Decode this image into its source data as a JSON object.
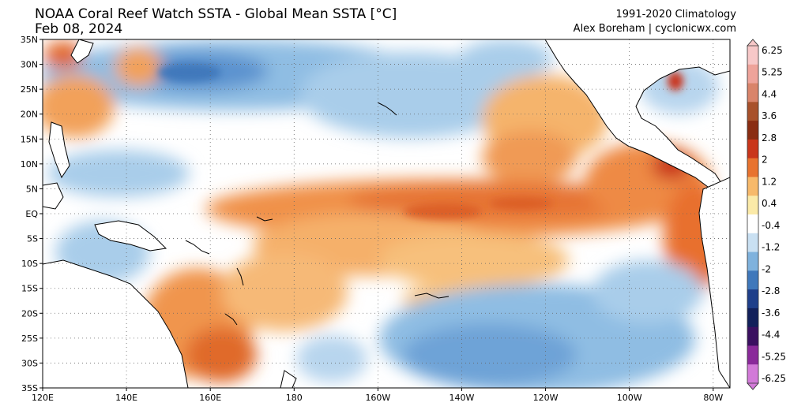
{
  "header": {
    "title": "NOAA Coral Reef Watch SSTA - Global Mean SSTA [°C]",
    "date": "Feb 08, 2024",
    "climatology": "1991-2020 Climatology",
    "credit": "Alex Boreham | cyclonicwx.com"
  },
  "chart_data": {
    "type": "heatmap",
    "title": "NOAA Coral Reef Watch SSTA - Global Mean SSTA [°C]",
    "subtitle": "Feb 08, 2024",
    "units": "°C",
    "x_axis": {
      "range": [
        120,
        284
      ],
      "ticks": [
        120,
        140,
        160,
        180,
        200,
        220,
        240,
        260,
        280
      ],
      "tick_labels": [
        "120E",
        "140E",
        "160E",
        "180",
        "160W",
        "140W",
        "120W",
        "100W",
        "80W"
      ]
    },
    "y_axis": {
      "range": [
        -35,
        35
      ],
      "ticks": [
        35,
        30,
        25,
        20,
        15,
        10,
        5,
        0,
        -5,
        -10,
        -15,
        -20,
        -25,
        -30,
        -35
      ],
      "tick_labels": [
        "35N",
        "30N",
        "25N",
        "20N",
        "15N",
        "10N",
        "5N",
        "EQ",
        "5S",
        "10S",
        "15S",
        "20S",
        "25S",
        "30S",
        "35S"
      ]
    },
    "grid": true,
    "colorbar": {
      "levels": [
        6.25,
        5.25,
        4.4,
        3.6,
        2.8,
        2,
        1.2,
        0.4,
        -0.4,
        -1.2,
        -2,
        -2.8,
        -3.6,
        -4.4,
        -5.25,
        -6.25
      ],
      "labels": [
        "6.25",
        "5.25",
        "4.4",
        "3.6",
        "2.8",
        "2",
        "1.2",
        "0.4",
        "-0.4",
        "-1.2",
        "-2",
        "-2.8",
        "-3.6",
        "-4.4",
        "-5.25",
        "-6.25"
      ],
      "colors": [
        "#f7c8c8",
        "#eea39a",
        "#d9846a",
        "#a8512b",
        "#8a2d12",
        "#c9361b",
        "#e8732f",
        "#f7b96a",
        "#fbeaa8",
        "#ffffff",
        "#c9e0f2",
        "#7fb2dd",
        "#3f78bb",
        "#1f3f8a",
        "#12205a",
        "#3a1060",
        "#8a2a9a",
        "#d27ad8"
      ]
    },
    "features": [
      {
        "region": "equatorial central/eastern Pacific",
        "anomaly": "warm",
        "lon": [
          180,
          280
        ],
        "lat": [
          -8,
          8
        ]
      },
      {
        "region": "subtropical South Pacific",
        "anomaly": "cool",
        "lon": [
          200,
          280
        ],
        "lat": [
          -35,
          -15
        ]
      },
      {
        "region": "subtropical North Pacific",
        "anomaly": "cool",
        "lon": [
          130,
          230
        ],
        "lat": [
          15,
          35
        ]
      }
    ]
  }
}
